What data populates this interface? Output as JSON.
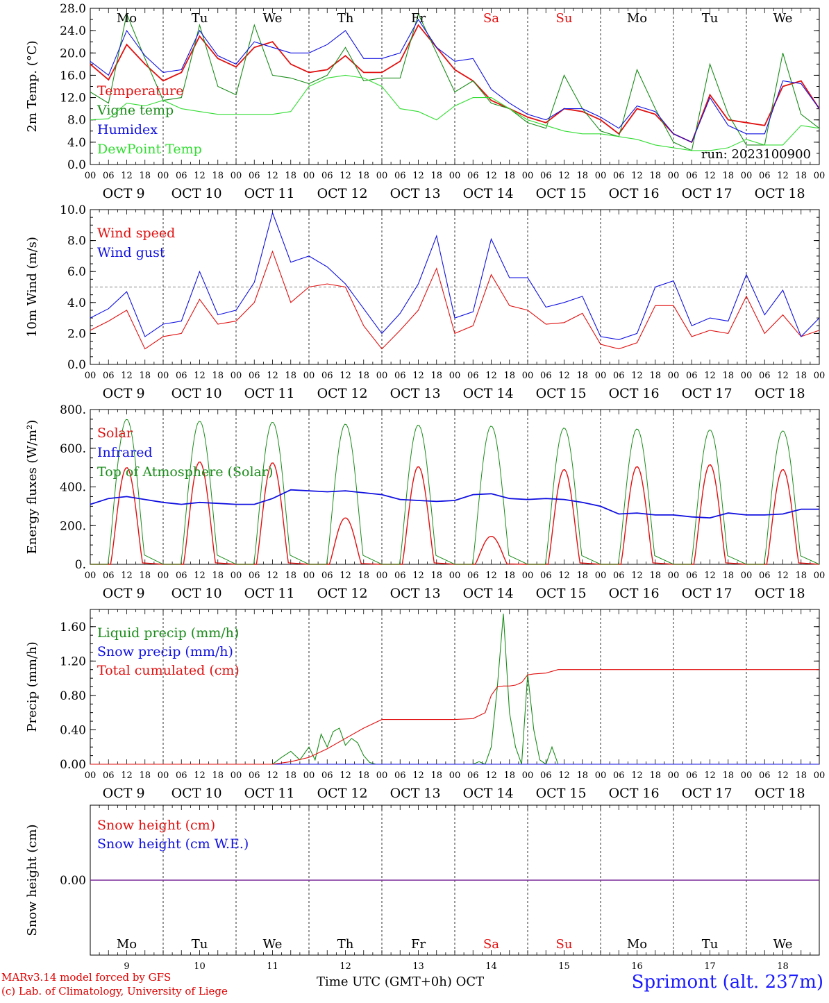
{
  "colors": {
    "red": "#e01010",
    "green": "#1a8c1a",
    "blue": "#1010e0",
    "lightgreen": "#33dd33",
    "purple": "#7a2a9a"
  },
  "days": [
    {
      "wd": "Mo",
      "date": "OCT  9",
      "num": "9",
      "weekend": false
    },
    {
      "wd": "Tu",
      "date": "OCT 10",
      "num": "10",
      "weekend": false
    },
    {
      "wd": "We",
      "date": "OCT 11",
      "num": "11",
      "weekend": false
    },
    {
      "wd": "Th",
      "date": "OCT 12",
      "num": "12",
      "weekend": false
    },
    {
      "wd": "Fr",
      "date": "OCT 13",
      "num": "13",
      "weekend": false
    },
    {
      "wd": "Sa",
      "date": "OCT 14",
      "num": "14",
      "weekend": true
    },
    {
      "wd": "Su",
      "date": "OCT 15",
      "num": "15",
      "weekend": true
    },
    {
      "wd": "Mo",
      "date": "OCT 16",
      "num": "16",
      "weekend": false
    },
    {
      "wd": "Tu",
      "date": "OCT 17",
      "num": "17",
      "weekend": false
    },
    {
      "wd": "We",
      "date": "OCT 18",
      "num": "18",
      "weekend": false
    }
  ],
  "hour_ticks": [
    "00",
    "06",
    "12",
    "18"
  ],
  "run_label": "run: 2023100900",
  "footer": {
    "model": "MARv3.14 model forced by GFS",
    "lab": "(c) Lab. of Climatology, University of Liege",
    "time_label": "Time UTC (GMT+0h) OCT",
    "station": "Sprimont (alt. 237m)"
  },
  "chart_data": [
    {
      "type": "line",
      "ylabel": "2m Temp. (°C)",
      "ylim": [
        0,
        28
      ],
      "yticks": [
        "0.0",
        "4.0",
        "8.0",
        "12.0",
        "16.0",
        "20.0",
        "24.0",
        "28.0"
      ],
      "x_hours": [
        0,
        6,
        12,
        18,
        24,
        30,
        36,
        42,
        48,
        54,
        60,
        66,
        72,
        78,
        84,
        90,
        96,
        102,
        108,
        114,
        120,
        126,
        132,
        138,
        144,
        150,
        156,
        162,
        168,
        174,
        180,
        186,
        192,
        198,
        204,
        210,
        216,
        222,
        228,
        234,
        240
      ],
      "series": [
        {
          "name": "Temperature",
          "color": "red",
          "values": [
            18,
            15.2,
            21.5,
            18,
            15,
            16.5,
            23,
            19,
            17.5,
            21,
            22,
            18,
            16.5,
            17,
            19.5,
            16.5,
            16.5,
            18.5,
            25,
            21,
            17,
            15,
            11.5,
            10,
            8.5,
            7.5,
            10,
            9.5,
            8,
            5.5,
            10,
            9,
            5.5,
            4,
            12.5,
            8,
            7.5,
            7,
            14,
            15,
            10
          ]
        },
        {
          "name": "Vigne temp",
          "color": "green",
          "values": [
            13,
            11,
            27,
            19,
            11.5,
            12,
            25,
            14,
            12.5,
            25,
            16,
            15.5,
            14.5,
            16,
            21,
            15,
            15.5,
            15.5,
            27,
            20,
            13,
            15,
            11,
            10,
            7.5,
            6.5,
            16,
            10,
            6,
            5,
            17,
            10,
            4,
            2.5,
            18,
            9,
            3.5,
            3.5,
            20,
            9,
            6.5
          ]
        },
        {
          "name": "Humidex",
          "color": "blue",
          "values": [
            18.5,
            16,
            24,
            19.5,
            16.5,
            17,
            24,
            19.5,
            18,
            22,
            21,
            20,
            20,
            21.5,
            24,
            19,
            19,
            20,
            26,
            21,
            18.5,
            19,
            13.5,
            11,
            9,
            8,
            10,
            10,
            8.5,
            6.5,
            10.5,
            9.5,
            5.5,
            4,
            12,
            7,
            5.5,
            5.5,
            15,
            14.5,
            10
          ]
        },
        {
          "name": "DewPoint Temp",
          "color": "lightgreen",
          "values": [
            8,
            8.2,
            11,
            10.5,
            11.5,
            10,
            9.5,
            9,
            9,
            9,
            9,
            9.5,
            14,
            15.5,
            16,
            15.5,
            14,
            10,
            9.5,
            8,
            10.5,
            12,
            12,
            10,
            8,
            7,
            6,
            5.5,
            5.5,
            5,
            4.5,
            3.5,
            3,
            2.5,
            2.5,
            3,
            4.5,
            3.5,
            3.5,
            7,
            6.5
          ]
        }
      ]
    },
    {
      "type": "line",
      "ylabel": "10m Wind (m/s)",
      "ylim": [
        0,
        10
      ],
      "yticks": [
        "0.0",
        "2.0",
        "4.0",
        "6.0",
        "8.0",
        "10.0"
      ],
      "hline": 5,
      "x_hours": [
        0,
        6,
        12,
        18,
        24,
        30,
        36,
        42,
        48,
        54,
        60,
        66,
        72,
        78,
        84,
        90,
        96,
        102,
        108,
        114,
        120,
        126,
        132,
        138,
        144,
        150,
        156,
        162,
        168,
        174,
        180,
        186,
        192,
        198,
        204,
        210,
        216,
        222,
        228,
        234,
        240
      ],
      "series": [
        {
          "name": "Wind speed",
          "color": "red",
          "values": [
            2.2,
            2.8,
            3.5,
            1,
            1.8,
            2,
            4.2,
            2.6,
            2.8,
            4,
            7.3,
            4,
            5,
            5.2,
            5,
            2.5,
            1,
            2.2,
            3.5,
            6.2,
            2,
            2.5,
            5.8,
            3.8,
            3.5,
            2.6,
            2.7,
            3.3,
            1.3,
            1,
            1.4,
            3.8,
            3.8,
            1.8,
            2.2,
            2,
            4.4,
            2,
            3.2,
            1.8,
            2.2
          ]
        },
        {
          "name": "Wind gust",
          "color": "blue",
          "values": [
            3,
            3.6,
            4.7,
            1.8,
            2.6,
            2.8,
            6,
            3.2,
            3.5,
            5.3,
            9.8,
            6.6,
            7,
            6.3,
            5.2,
            3.6,
            2,
            3.3,
            5.2,
            8.3,
            3,
            3.4,
            8.1,
            5.6,
            5.6,
            3.7,
            4,
            4.4,
            1.8,
            1.6,
            2,
            5,
            5.4,
            2.5,
            3,
            2.8,
            5.8,
            3.2,
            4.8,
            1.8,
            3
          ]
        }
      ]
    },
    {
      "type": "line",
      "ylabel": "Energy fluxes (W/m²)",
      "ylim": [
        0,
        800
      ],
      "yticks": [
        "0.",
        "200.",
        "400.",
        "600.",
        "800."
      ],
      "series_daily": [
        {
          "name": "Solar",
          "color": "red",
          "peaks": [
            500,
            530,
            525,
            240,
            505,
            145,
            490,
            505,
            515,
            490
          ]
        },
        {
          "name": "Top of Atmosphere (Solar)",
          "color": "green",
          "peaks": [
            750,
            740,
            735,
            725,
            720,
            715,
            705,
            700,
            695,
            690
          ]
        }
      ],
      "series": [
        {
          "name": "Infrared",
          "color": "blue",
          "x_hours": [
            0,
            6,
            12,
            18,
            24,
            30,
            36,
            42,
            48,
            54,
            60,
            66,
            72,
            78,
            84,
            90,
            96,
            102,
            108,
            114,
            120,
            126,
            132,
            138,
            144,
            150,
            156,
            162,
            168,
            174,
            180,
            186,
            192,
            198,
            204,
            210,
            216,
            222,
            228,
            234,
            240
          ],
          "values": [
            310,
            340,
            350,
            335,
            320,
            310,
            320,
            315,
            310,
            310,
            340,
            385,
            380,
            375,
            380,
            370,
            360,
            335,
            330,
            325,
            330,
            360,
            365,
            340,
            335,
            340,
            335,
            320,
            300,
            260,
            265,
            255,
            255,
            245,
            240,
            265,
            255,
            255,
            260,
            285,
            285
          ]
        }
      ]
    },
    {
      "type": "line",
      "ylabel": "Precip (mm/h)",
      "ylim": [
        0,
        1.8
      ],
      "yticks": [
        "0.00",
        "0.40",
        "0.80",
        "1.20",
        "1.60"
      ],
      "series": [
        {
          "name": "Liquid precip (mm/h)",
          "color": "green",
          "x_hours": [
            0,
            60,
            63,
            66,
            69,
            72,
            74,
            76,
            78,
            80,
            82,
            84,
            86,
            88,
            90,
            92,
            94,
            120,
            126,
            128,
            130,
            132,
            134,
            136,
            138,
            140,
            142,
            144,
            146,
            148,
            150,
            152,
            154,
            156,
            240
          ],
          "values": [
            0,
            0,
            0.08,
            0.15,
            0.05,
            0.2,
            0.05,
            0.35,
            0.2,
            0.38,
            0.42,
            0.22,
            0.3,
            0.25,
            0.1,
            0.02,
            0,
            0,
            0,
            0.03,
            0.0,
            0.2,
            0.9,
            1.75,
            0.6,
            0.2,
            0,
            1.05,
            0.4,
            0.05,
            0,
            0.2,
            0,
            0,
            0
          ]
        },
        {
          "name": "Snow precip (mm/h)",
          "color": "blue",
          "x_hours": [
            0,
            240
          ],
          "values": [
            0,
            0
          ]
        },
        {
          "name": "Total cumulated (cm)",
          "color": "red",
          "x_hours": [
            0,
            60,
            66,
            72,
            78,
            84,
            90,
            96,
            120,
            126,
            130,
            132,
            134,
            136,
            138,
            140,
            142,
            144,
            146,
            150,
            154,
            240
          ],
          "values": [
            0,
            0,
            0.03,
            0.08,
            0.18,
            0.3,
            0.42,
            0.52,
            0.52,
            0.53,
            0.6,
            0.8,
            0.9,
            0.91,
            0.91,
            0.92,
            0.95,
            1.04,
            1.05,
            1.06,
            1.1,
            1.1
          ]
        }
      ]
    },
    {
      "type": "line",
      "ylabel": "Snow height (cm)",
      "yticks": [
        "0.00"
      ],
      "series": [
        {
          "name": "Snow height (cm)",
          "color": "red",
          "x_hours": [
            0,
            240
          ],
          "values": [
            0,
            0
          ]
        },
        {
          "name": "Snow height (cm W.E.)",
          "color": "blue",
          "x_hours": [
            0,
            240
          ],
          "values": [
            0,
            0
          ]
        }
      ]
    }
  ]
}
